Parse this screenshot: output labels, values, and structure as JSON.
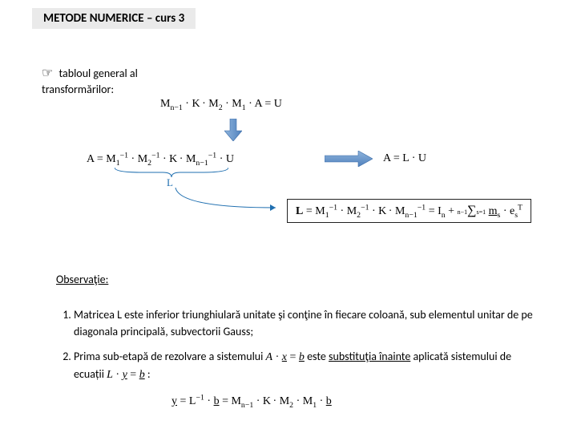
{
  "title": "METODE  NUMERICE – curs 3",
  "intro": "tabloul general al transformărilor:",
  "eq1_html": "M<sub>n−1</sub> · <span class='dots'>K</span> · M<sub>2</sub> · M<sub>1</sub> · A = U",
  "eq2_html": "A = M<sub>1</sub><sup>−1</sup> · M<sub>2</sub><sup>−1</sup> · <span class='dots'>K</span> · M<sub>n−1</sub><sup>−1</sup> · U",
  "brace_label": "L",
  "eq3_html": "A = L · U",
  "eq4_html": "<b>L</b> = M<sub>1</sub><sup>−1</sup> · M<sub>2</sub><sup>−1</sup> · <span class='dots'>K</span> · M<sub>n−1</sub><sup>−1</sup> = I<sub>n</sub> + <span class='sum'><span class='top'>n−1</span><span class='sigma'>∑</span><span class='bot'>s=1</span></span> <span class='under'>m</span><sub>s</sub> · e<sub>s</sub><sup>T</sup>",
  "obs_title": "Observaţie:",
  "obs1_pre": "Matricea L este inferior triunghiulară unitate şi conţine în fiecare coloană, sub elementul unitar de pe diagonala principală, subvectorii Gauss;",
  "obs2_pre": "Prima sub-etapă de rezolvare a sistemului ",
  "obs2_mid_html": "<span class='it'>A</span> · <span class='it under'>x</span> = <span class='it under'>b</span>",
  "obs2_post_a": " este ",
  "obs2_emph": "substituţia înainte",
  "obs2_post_b": " aplicată sistemului de ecuații ",
  "obs2_eqn_html": "<span class='it'>L</span> · <span class='it under'>y</span> = <span class='it under'>b</span>",
  "obs2_colon": " :",
  "eq5_html": "<span class='under'>y</span> = L<sup>−1</sup> · <span class='under'>b</span> = M<sub>n−1</sub> · <span class='dots'>K</span> · M<sub>2</sub> · M<sub>1</sub> · <span class='under'>b</span>",
  "colors": {
    "accent_blue": "#1f6fb0",
    "arrow_blue_dark": "#4f81bd",
    "arrow_blue_light": "#8fb4dc",
    "box_border": "#222222",
    "title_bg": "#eaeaea"
  }
}
